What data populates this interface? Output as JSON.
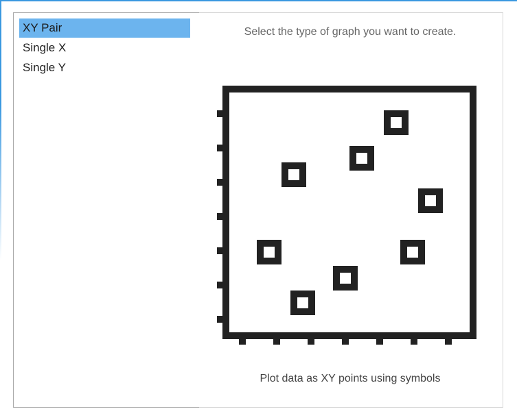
{
  "graph_type_list": {
    "items": [
      {
        "label": "XY Pair",
        "selected": true
      },
      {
        "label": "Single X",
        "selected": false
      },
      {
        "label": "Single Y",
        "selected": false
      }
    ]
  },
  "preview": {
    "prompt": "Select the type of graph you want to create.",
    "caption": "Plot data as XY points using symbols",
    "icon": "xy-scatter-plot-icon",
    "icon_color": "#222222"
  },
  "colors": {
    "selection": "#6cb4ee",
    "accent": "#3a98e0"
  }
}
